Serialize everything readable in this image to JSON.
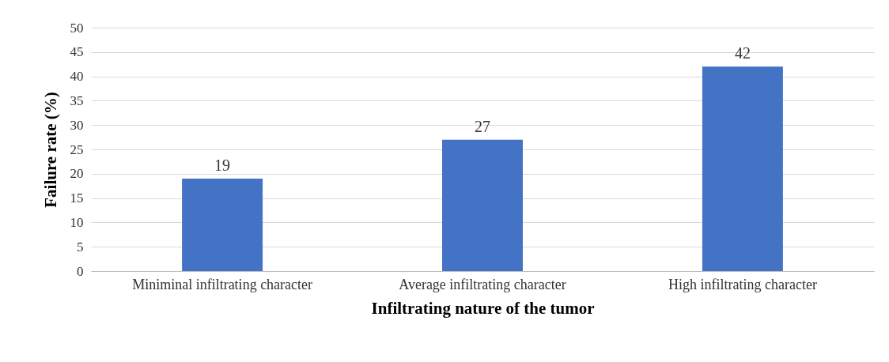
{
  "chart_data": {
    "type": "bar",
    "xlabel": "Infiltrating nature of the tumor",
    "ylabel": "Failure rate (%)",
    "categories": [
      "Miniminal infiltrating character",
      "Average infiltrating character",
      "High infiltrating character"
    ],
    "values": [
      19,
      27,
      42
    ],
    "color": "#4472c4",
    "ylim": [
      0,
      50
    ],
    "yticks": [
      0,
      5,
      10,
      15,
      20,
      25,
      30,
      35,
      40,
      45,
      50
    ],
    "grid": "y",
    "data_labels": true
  }
}
